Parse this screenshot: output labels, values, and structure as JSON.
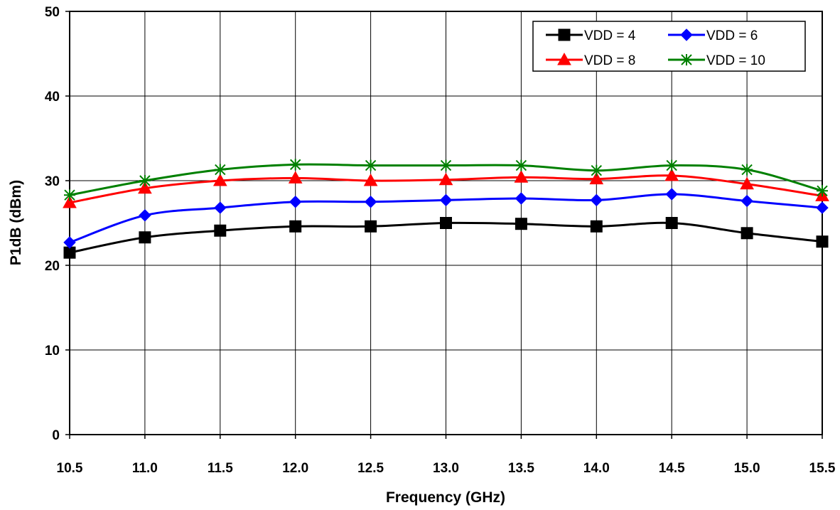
{
  "chart_data": {
    "type": "line",
    "xlabel": "Frequency (GHz)",
    "ylabel": "P1dB  (dBm)",
    "x": [
      10.5,
      11.0,
      11.5,
      12.0,
      12.5,
      13.0,
      13.5,
      14.0,
      14.5,
      15.0,
      15.5
    ],
    "x_tick_labels": [
      "10.5",
      "11.0",
      "11.5",
      "12.0",
      "12.5",
      "13.0",
      "13.5",
      "14.0",
      "14.5",
      "15.0",
      "15.5"
    ],
    "xlim": [
      10.5,
      15.5
    ],
    "ylim": [
      0,
      50
    ],
    "y_ticks": [
      0,
      10,
      20,
      30,
      40,
      50
    ],
    "y_tick_labels": [
      "0",
      "10",
      "20",
      "30",
      "40",
      "50"
    ],
    "grid": true,
    "legend_position": "top-right",
    "series": [
      {
        "name": "VDD = 4",
        "color": "#000000",
        "marker": "square",
        "values": [
          21.5,
          23.3,
          24.1,
          24.6,
          24.6,
          25.0,
          24.9,
          24.6,
          25.0,
          23.8,
          22.8
        ]
      },
      {
        "name": "VDD = 6",
        "color": "#0000ff",
        "marker": "diamond",
        "values": [
          22.7,
          25.9,
          26.8,
          27.5,
          27.5,
          27.7,
          27.9,
          27.7,
          28.4,
          27.6,
          26.8
        ]
      },
      {
        "name": "VDD = 8",
        "color": "#ff0000",
        "marker": "triangle",
        "values": [
          27.4,
          29.1,
          30.0,
          30.3,
          30.0,
          30.1,
          30.4,
          30.2,
          30.6,
          29.6,
          28.2
        ]
      },
      {
        "name": "VDD = 10",
        "color": "#008000",
        "marker": "asterisk",
        "values": [
          28.3,
          30.0,
          31.3,
          31.9,
          31.8,
          31.8,
          31.8,
          31.2,
          31.8,
          31.3,
          28.8
        ]
      }
    ]
  }
}
